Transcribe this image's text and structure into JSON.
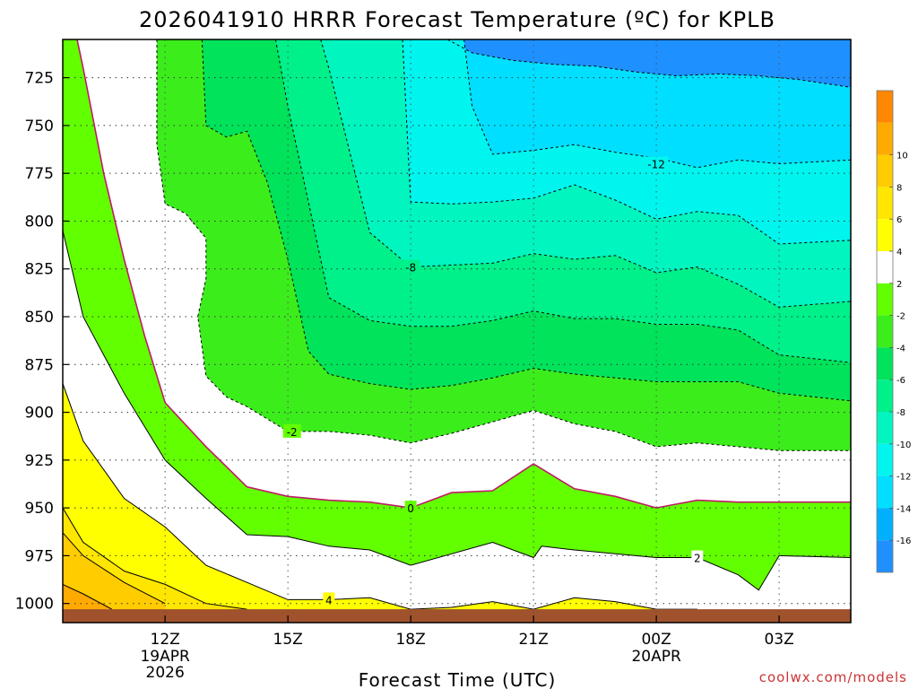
{
  "chart_data": {
    "type": "heatmap",
    "title": "2026041910 HRRR Forecast Temperature (ºC) for KPLB",
    "xlabel": "Forecast Time (UTC)",
    "ylabel": "",
    "y_scale": "pressure (inverted)",
    "ylim": [
      1010,
      705
    ],
    "x_hours": [
      9.5,
      28.75
    ],
    "y_ticks": [
      725,
      750,
      775,
      800,
      825,
      850,
      875,
      900,
      925,
      950,
      975,
      1000
    ],
    "x_ticks": [
      {
        "hour": 12,
        "label": "12Z",
        "sub": [
          "19APR",
          "2026"
        ]
      },
      {
        "hour": 15,
        "label": "15Z",
        "sub": []
      },
      {
        "hour": 18,
        "label": "18Z",
        "sub": []
      },
      {
        "hour": 21,
        "label": "21Z",
        "sub": []
      },
      {
        "hour": 24,
        "label": "00Z",
        "sub": [
          "20APR"
        ]
      },
      {
        "hour": 27,
        "label": "03Z",
        "sub": []
      }
    ],
    "grid": true,
    "colorbar": {
      "levels": [
        -18,
        -16,
        -14,
        -12,
        -10,
        -8,
        -6,
        -4,
        -2,
        2,
        4,
        6,
        8,
        10,
        12
      ],
      "labels": [
        "-16",
        "-14",
        "-12",
        "-10",
        "-8",
        "-6",
        "-4",
        "-2",
        "2",
        "4",
        "6",
        "8",
        "10"
      ],
      "colors": [
        "#1e90ff",
        "#00b0ff",
        "#00dfff",
        "#00f5ef",
        "#00f5bf",
        "#00f08a",
        "#00e35a",
        "#3ced1c",
        "#62ff00",
        "#ffffff",
        "#ffff00",
        "#ffe600",
        "#ffcc00",
        "#ffaa00",
        "#ff8800"
      ]
    },
    "ground": {
      "color": "#a0522d",
      "top_pressure": 1003
    },
    "contours": [
      {
        "value": -14,
        "hour": [
          18.9,
          19.5,
          20.5,
          21.5,
          22.5,
          23.5,
          24.5,
          25.5,
          26.5,
          27.5,
          28.75
        ],
        "pressure": [
          705,
          712,
          716,
          718,
          719,
          722,
          724,
          723,
          724,
          726,
          730
        ]
      },
      {
        "value": -12,
        "hour": [
          19.3,
          19.5,
          20.0,
          21.0,
          22.0,
          23.0,
          24.0,
          25.0,
          26.0,
          27.0,
          28.75
        ],
        "pressure": [
          705,
          740,
          765,
          763,
          760,
          764,
          767,
          772,
          768,
          770,
          768
        ]
      },
      {
        "value": -10,
        "hour": [
          17.8,
          18.0,
          19.0,
          20.0,
          21.0,
          22.0,
          23.0,
          24.0,
          25.0,
          26.0,
          27.0,
          28.75
        ],
        "pressure": [
          705,
          790,
          791,
          790,
          788,
          781,
          789,
          799,
          795,
          797,
          812,
          810
        ]
      },
      {
        "value": -8,
        "hour": [
          15.8,
          16.0,
          17.0,
          18.0,
          19.0,
          20.0,
          21.0,
          22.0,
          23.0,
          24.0,
          25.0,
          26.0,
          27.0,
          28.75
        ],
        "pressure": [
          705,
          720,
          806,
          824,
          823,
          822,
          817,
          820,
          818,
          827,
          824,
          833,
          845,
          842
        ]
      },
      {
        "value": -6,
        "hour": [
          14.7,
          15.0,
          15.5,
          16.0,
          17.0,
          18.0,
          19.0,
          20.0,
          21.0,
          22.0,
          23.0,
          24.0,
          25.0,
          26.0,
          27.0,
          28.75
        ],
        "pressure": [
          705,
          740,
          790,
          840,
          852,
          855,
          855,
          852,
          847,
          851,
          851,
          854,
          854,
          857,
          870,
          874
        ]
      },
      {
        "value": -4,
        "hour": [
          12.9,
          13.0,
          13.5,
          14.0,
          14.5,
          15.0,
          15.5,
          16.0,
          17.0,
          18.0,
          19.0,
          20.0,
          21.0,
          22.0,
          23.0,
          24.0,
          25.0,
          26.0,
          27.0,
          28.75
        ],
        "pressure": [
          705,
          750,
          756,
          753,
          780,
          820,
          868,
          880,
          885,
          888,
          886,
          882,
          877,
          880,
          882,
          884,
          884,
          884,
          890,
          894
        ]
      },
      {
        "value": -2,
        "hour": [
          11.8,
          11.8,
          12.0,
          12.5,
          13.0,
          13.0,
          12.8,
          13.0,
          13.5,
          14.0,
          15.0,
          16.0,
          17.0,
          18.0,
          19.0,
          20.0,
          21.0,
          22.0,
          23.0,
          24.0,
          25.0,
          26.0,
          27.0,
          28.75
        ],
        "pressure": [
          705,
          760,
          791,
          796,
          809,
          830,
          850,
          881,
          892,
          897,
          910,
          910,
          912,
          916,
          911,
          905,
          899,
          906,
          910,
          918,
          916,
          918,
          920,
          920
        ]
      },
      {
        "value": 0,
        "hour": [
          9.85,
          10.0,
          10.5,
          11.0,
          11.5,
          12.0,
          13.0,
          14.0,
          15.0,
          16.0,
          17.0,
          18.0,
          19.0,
          20.0,
          21.0,
          22.0,
          23.0,
          24.0,
          25.0,
          26.0,
          27.0,
          28.75
        ],
        "pressure": [
          705,
          720,
          775,
          820,
          860,
          895,
          918,
          939,
          944,
          946,
          947,
          950,
          942,
          941,
          927,
          940,
          944,
          950,
          946,
          947,
          947,
          947
        ]
      },
      {
        "value": 2,
        "hour": [
          9.5,
          10.0,
          11.0,
          12.0,
          13.0,
          14.0,
          15.0,
          16.0,
          17.0,
          18.0,
          19.0,
          20.0,
          21.0,
          21.2,
          22.0,
          23.0,
          24.0,
          25.0,
          26.0,
          26.5,
          27.0,
          28.75
        ],
        "pressure": [
          805,
          850,
          890,
          925,
          945,
          964,
          965,
          970,
          972,
          980,
          974,
          968,
          976,
          970,
          972,
          974,
          976,
          976,
          985,
          993,
          975,
          976
        ]
      },
      {
        "value": 4,
        "hour": [
          9.5,
          10.0,
          11.0,
          12.0,
          13.0,
          14.0,
          15.0,
          16.0,
          17.0,
          18.0,
          19.0,
          20.0,
          21.0,
          22.0,
          23.0,
          24.0,
          25.0
        ],
        "pressure": [
          885,
          915,
          945,
          960,
          980,
          989,
          998,
          998,
          997,
          1003,
          1002,
          999,
          1003,
          997,
          999,
          1003,
          1003
        ]
      },
      {
        "value": 6,
        "hour": [
          9.5,
          10.0,
          11.0,
          12.0,
          13.0,
          14.0
        ],
        "pressure": [
          950,
          968,
          983,
          990,
          1000,
          1003
        ]
      },
      {
        "value": 8,
        "hour": [
          9.5,
          10.0,
          11.0,
          12.0
        ],
        "pressure": [
          963,
          975,
          989,
          1000
        ]
      },
      {
        "value": 10,
        "hour": [
          9.5,
          10.0,
          10.7
        ],
        "pressure": [
          990,
          995,
          1003
        ]
      }
    ],
    "contour_labels": [
      {
        "text": "-12",
        "hour": 24.0,
        "pressure": 770
      },
      {
        "text": "-8",
        "hour": 18.0,
        "pressure": 824
      },
      {
        "text": "-2",
        "hour": 15.1,
        "pressure": 910
      },
      {
        "text": "0",
        "hour": 18.0,
        "pressure": 950
      },
      {
        "text": "2",
        "hour": 25.0,
        "pressure": 976
      },
      {
        "text": "4",
        "hour": 16.0,
        "pressure": 998
      }
    ]
  },
  "watermark": "coolwx.com/models"
}
